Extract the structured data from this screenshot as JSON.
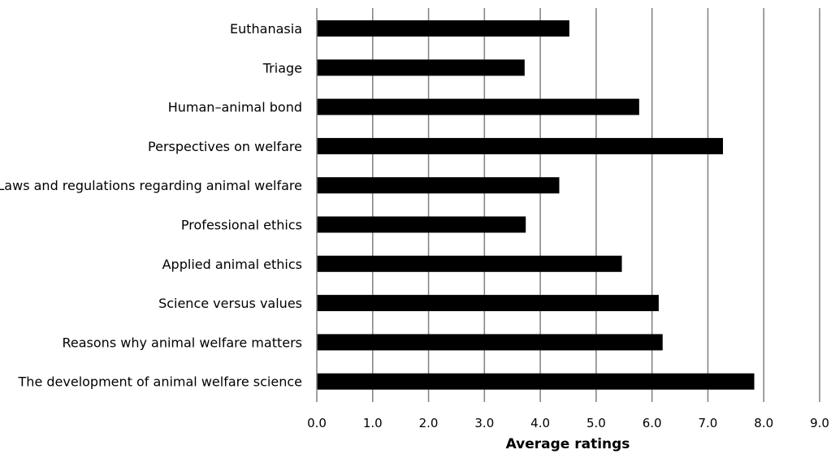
{
  "chart_data": {
    "type": "bar",
    "orientation": "horizontal",
    "categories": [
      "Euthanasia",
      "Triage",
      "Human–animal bond",
      "Perspectives on welfare",
      "Laws and regulations regarding animal welfare",
      "Professional ethics",
      "Applied animal ethics",
      "Science versus values",
      "Reasons why animal welfare matters",
      "The development of animal welfare science"
    ],
    "values": [
      4.52,
      3.72,
      5.77,
      7.27,
      4.34,
      3.74,
      5.46,
      6.12,
      6.19,
      7.83
    ],
    "xlabel": "Average ratings",
    "ylabel": "",
    "xlim": [
      0,
      9
    ],
    "xticks": [
      "0.0",
      "1.0",
      "2.0",
      "3.0",
      "4.0",
      "5.0",
      "6.0",
      "7.0",
      "8.0",
      "9.0"
    ],
    "grid": "vertical",
    "bar_color": "#000000",
    "grid_color": "#808080"
  }
}
